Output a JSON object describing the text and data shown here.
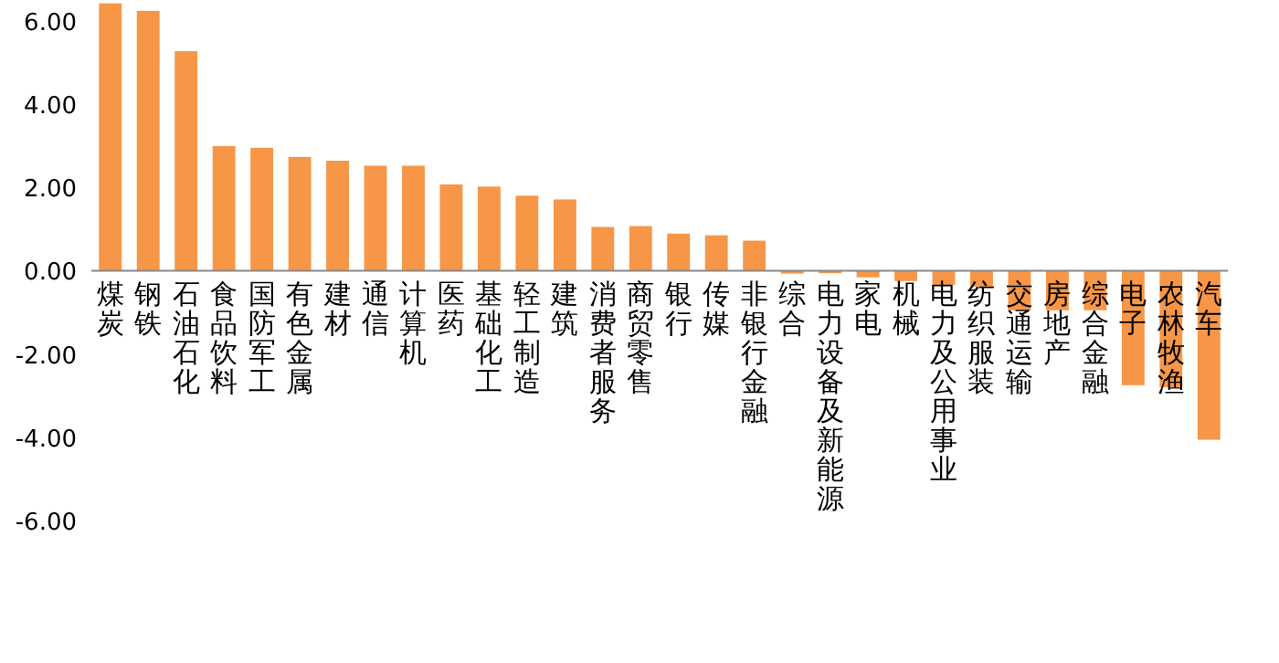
{
  "chart_data": {
    "type": "bar",
    "categories": [
      "煤炭",
      "钢铁",
      "石油石化",
      "食品饮料",
      "国防军工",
      "有色金属",
      "建材",
      "通信",
      "计算机",
      "医药",
      "基础化工",
      "轻工制造",
      "建筑",
      "消费者服务",
      "商贸零售",
      "银行",
      "传媒",
      "非银行金融",
      "综合",
      "电力设备及新能源",
      "家电",
      "机械",
      "电力及公用事业",
      "纺织服装",
      "交通运输",
      "房地产",
      "综合金融",
      "电子",
      "农林牧渔",
      "汽车"
    ],
    "values": [
      6.42,
      6.24,
      5.27,
      2.99,
      2.95,
      2.73,
      2.64,
      2.52,
      2.52,
      2.07,
      2.02,
      1.8,
      1.71,
      1.05,
      1.07,
      0.89,
      0.85,
      0.72,
      -0.07,
      -0.06,
      -0.16,
      -0.25,
      -0.34,
      -0.38,
      -0.95,
      -0.95,
      -0.95,
      -2.75,
      -2.8,
      -4.06
    ],
    "color": "#f79646",
    "ylim": [
      -6,
      6.5
    ],
    "yticks": [
      {
        "value": -6,
        "label": "-6.00"
      },
      {
        "value": -4,
        "label": "-4.00"
      },
      {
        "value": -2,
        "label": "-2.00"
      },
      {
        "value": 0,
        "label": "0.00"
      },
      {
        "value": 2,
        "label": "2.00"
      },
      {
        "value": 4,
        "label": "4.00"
      },
      {
        "value": 6,
        "label": "6.00"
      }
    ],
    "grid": false
  }
}
